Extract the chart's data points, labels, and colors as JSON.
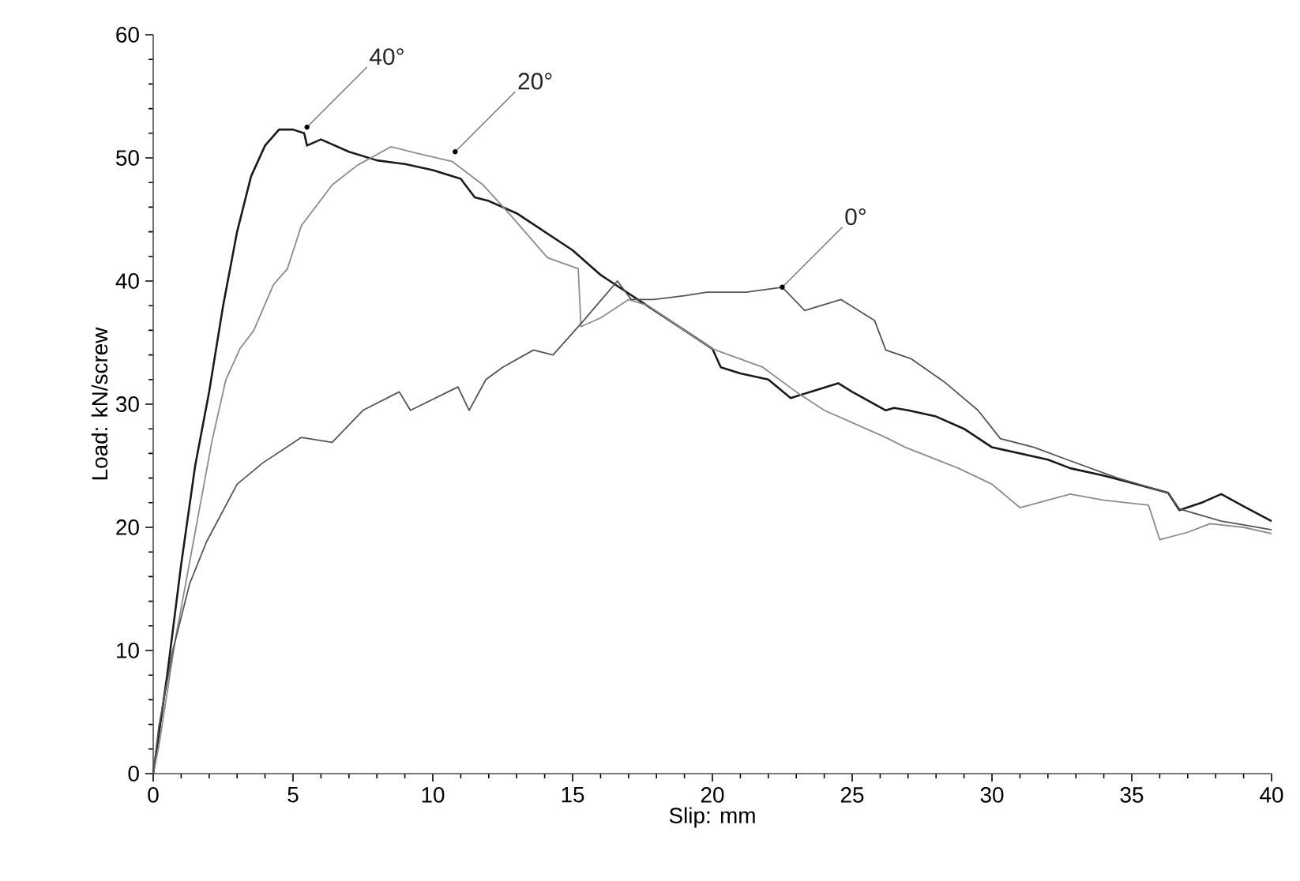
{
  "chart_data": {
    "type": "line",
    "xlabel": "Slip: mm",
    "ylabel": "Load: kN/screw",
    "xlim": [
      0,
      40
    ],
    "ylim": [
      0,
      60
    ],
    "xticks": [
      0,
      5,
      10,
      15,
      20,
      25,
      30,
      35,
      40
    ],
    "yticks": [
      0,
      10,
      20,
      30,
      40,
      50,
      60
    ],
    "series": [
      {
        "color": "#1a1a1a",
        "x": [
          0,
          0.5,
          1,
          1.5,
          2,
          2.5,
          3,
          3.5,
          4,
          4.5,
          5,
          5.4,
          5.5,
          6,
          7,
          8,
          9,
          10,
          11,
          11.5,
          12,
          13,
          14,
          15,
          16,
          17,
          18,
          19,
          20,
          20.3,
          21,
          22,
          22.8,
          23.5,
          24.5,
          25,
          26.2,
          26.5,
          27,
          28,
          29,
          30,
          31,
          32,
          32.8,
          34,
          35,
          36.3,
          36.7,
          37.5,
          38.2,
          39,
          40
        ],
        "values": [
          0,
          8,
          17,
          25,
          31,
          38,
          44,
          48.5,
          51,
          52.3,
          52.3,
          52,
          51,
          51.5,
          50.5,
          49.8,
          49.5,
          49,
          48.3,
          46.8,
          46.5,
          45.5,
          44,
          42.5,
          40.5,
          39,
          37.5,
          36,
          34.5,
          33,
          32.5,
          32,
          30.5,
          31,
          31.7,
          31,
          29.5,
          29.7,
          29.5,
          29,
          28,
          26.5,
          26,
          25.5,
          24.8,
          24.2,
          23.6,
          22.8,
          21.4,
          22,
          22.7,
          21.7,
          20.5
        ]
      },
      {
        "color": "#8c8c8c",
        "x": [
          0,
          0.2,
          0.8,
          1.5,
          2.1,
          2.6,
          3.1,
          3.6,
          4.3,
          4.8,
          5.3,
          6.4,
          7.3,
          8.5,
          9.4,
          10.7,
          11.8,
          12.8,
          14.1,
          15.2,
          15.3,
          16,
          17,
          17.7,
          19,
          20,
          21.8,
          23,
          24,
          25,
          26.2,
          26.9,
          28.8,
          30,
          31,
          32.8,
          34,
          35.6,
          36,
          37,
          37.8,
          39,
          40
        ],
        "values": [
          0,
          2.2,
          11,
          19.6,
          27,
          32,
          34.5,
          36,
          39.7,
          41,
          44.5,
          47.8,
          49.4,
          50.9,
          50.4,
          49.7,
          47.8,
          45.3,
          41.9,
          41,
          36.3,
          37,
          38.5,
          38,
          36,
          34.5,
          33,
          31,
          29.5,
          28.5,
          27.3,
          26.5,
          24.8,
          23.5,
          21.6,
          22.7,
          22.2,
          21.8,
          19,
          19.6,
          20.3,
          20,
          19.5
        ]
      },
      {
        "color": "#555555",
        "x": [
          0,
          0.2,
          0.7,
          1.3,
          1.9,
          3,
          3.9,
          5.3,
          6.4,
          7.5,
          8.8,
          9.2,
          10.9,
          11.3,
          11.9,
          12.5,
          13.6,
          14.3,
          15.4,
          16.6,
          17.1,
          17.9,
          19,
          19.8,
          21.2,
          22.5,
          23.3,
          24.6,
          25.8,
          26.2,
          27.1,
          28.3,
          29.5,
          30.3,
          31.5,
          32.8,
          34.5,
          36.3,
          36.7,
          38.2,
          39,
          40
        ],
        "values": [
          0,
          3.8,
          10,
          15.4,
          18.8,
          23.5,
          25.2,
          27.3,
          26.9,
          29.5,
          31,
          29.5,
          31.4,
          29.5,
          32,
          33,
          34.4,
          34,
          36.8,
          40,
          38.5,
          38.5,
          38.8,
          39.1,
          39.1,
          39.5,
          37.6,
          38.5,
          36.8,
          34.4,
          33.7,
          31.8,
          29.5,
          27.2,
          26.5,
          25.4,
          24,
          22.8,
          21.5,
          20.5,
          20.2,
          19.8
        ]
      }
    ],
    "annotations": [
      {
        "text": "40°",
        "x": 5.5,
        "y": 52.5
      },
      {
        "text": "20°",
        "x": 10.8,
        "y": 50.5
      },
      {
        "text": "0°",
        "x": 22.5,
        "y": 39.5
      }
    ]
  }
}
